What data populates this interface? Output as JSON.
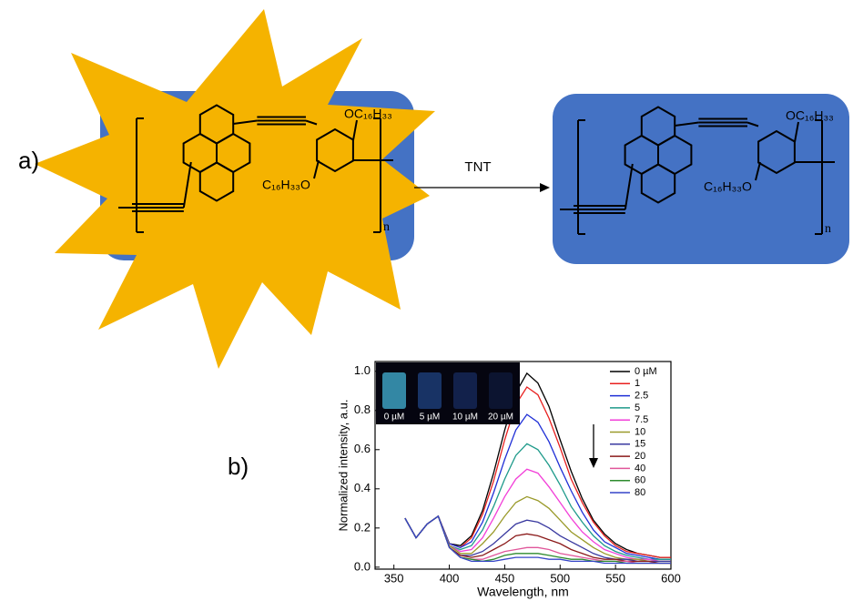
{
  "figure": {
    "panel_a_label": "a)",
    "panel_b_label": "b)",
    "arrow_label": "TNT",
    "left_molecule": {
      "substituent_top": "OC₁₆H₃₃",
      "substituent_bottom": "C₁₆H₃₃O",
      "repeat": "n"
    },
    "right_molecule": {
      "substituent_top": "OC₁₆H₃₃",
      "substituent_bottom": "C₁₆H₃₃O",
      "repeat": "n"
    }
  },
  "chart_data": {
    "type": "line",
    "x_label": "Wavelength, nm",
    "y_label": "Normalized intensity, a.u.",
    "inset_labels": [
      "0 µM",
      "5 µM",
      "10 µM",
      "20 µM"
    ],
    "x": [
      360,
      370,
      380,
      390,
      400,
      410,
      420,
      430,
      440,
      450,
      460,
      470,
      480,
      490,
      500,
      510,
      520,
      530,
      540,
      550,
      560,
      570,
      580,
      590,
      600
    ],
    "xlim": [
      333,
      600
    ],
    "xticks": [
      350,
      400,
      450,
      500,
      550,
      600
    ],
    "ylim": [
      -0.01,
      1.05
    ],
    "yticks": [
      {
        "value": 0,
        "label": "0.0"
      },
      0.2,
      0.4,
      0.6,
      0.8,
      {
        "value": 1,
        "label": "1.0"
      }
    ],
    "series": [
      {
        "name": "0 µM",
        "color": "#000000",
        "values": [
          0.25,
          0.15,
          0.22,
          0.26,
          0.12,
          0.11,
          0.16,
          0.29,
          0.48,
          0.7,
          0.89,
          0.99,
          0.94,
          0.82,
          0.65,
          0.49,
          0.35,
          0.24,
          0.17,
          0.12,
          0.09,
          0.07,
          0.06,
          0.05,
          0.05
        ]
      },
      {
        "name": "1",
        "color": "#e8201f",
        "values": [
          0.25,
          0.15,
          0.22,
          0.26,
          0.12,
          0.1,
          0.15,
          0.27,
          0.44,
          0.65,
          0.83,
          0.92,
          0.88,
          0.76,
          0.61,
          0.45,
          0.33,
          0.23,
          0.16,
          0.11,
          0.08,
          0.07,
          0.06,
          0.05,
          0.05
        ]
      },
      {
        "name": "2.5",
        "color": "#1f2fd6",
        "values": [
          0.25,
          0.15,
          0.22,
          0.26,
          0.12,
          0.1,
          0.13,
          0.23,
          0.38,
          0.55,
          0.7,
          0.78,
          0.74,
          0.64,
          0.51,
          0.39,
          0.28,
          0.19,
          0.13,
          0.1,
          0.07,
          0.06,
          0.05,
          0.04,
          0.04
        ]
      },
      {
        "name": "5",
        "color": "#1e9a8a",
        "values": [
          0.25,
          0.15,
          0.22,
          0.26,
          0.11,
          0.09,
          0.11,
          0.19,
          0.31,
          0.45,
          0.57,
          0.63,
          0.6,
          0.52,
          0.42,
          0.31,
          0.23,
          0.16,
          0.11,
          0.08,
          0.06,
          0.05,
          0.04,
          0.04,
          0.04
        ]
      },
      {
        "name": "7.5",
        "color": "#f23fd8",
        "values": [
          0.25,
          0.15,
          0.22,
          0.26,
          0.11,
          0.08,
          0.09,
          0.15,
          0.25,
          0.36,
          0.45,
          0.5,
          0.48,
          0.41,
          0.33,
          0.25,
          0.18,
          0.13,
          0.09,
          0.07,
          0.05,
          0.04,
          0.04,
          0.03,
          0.03
        ]
      },
      {
        "name": "10",
        "color": "#9a9a2a",
        "values": [
          0.25,
          0.15,
          0.22,
          0.26,
          0.11,
          0.07,
          0.07,
          0.12,
          0.18,
          0.26,
          0.33,
          0.36,
          0.34,
          0.3,
          0.24,
          0.18,
          0.14,
          0.1,
          0.07,
          0.05,
          0.04,
          0.04,
          0.03,
          0.03,
          0.03
        ]
      },
      {
        "name": "15",
        "color": "#3a3aa0",
        "values": [
          0.25,
          0.15,
          0.22,
          0.26,
          0.1,
          0.06,
          0.06,
          0.08,
          0.12,
          0.17,
          0.22,
          0.24,
          0.23,
          0.2,
          0.16,
          0.13,
          0.1,
          0.07,
          0.05,
          0.04,
          0.04,
          0.03,
          0.03,
          0.03,
          0.03
        ]
      },
      {
        "name": "20",
        "color": "#8b1a1a",
        "values": [
          0.25,
          0.15,
          0.22,
          0.26,
          0.1,
          0.06,
          0.05,
          0.06,
          0.09,
          0.12,
          0.16,
          0.17,
          0.16,
          0.14,
          0.12,
          0.09,
          0.07,
          0.05,
          0.04,
          0.04,
          0.03,
          0.03,
          0.03,
          0.02,
          0.02
        ]
      },
      {
        "name": "40",
        "color": "#e0569a",
        "values": [
          0.25,
          0.15,
          0.22,
          0.26,
          0.1,
          0.05,
          0.04,
          0.04,
          0.06,
          0.08,
          0.09,
          0.1,
          0.1,
          0.09,
          0.07,
          0.06,
          0.05,
          0.04,
          0.03,
          0.03,
          0.03,
          0.02,
          0.02,
          0.02,
          0.02
        ]
      },
      {
        "name": "60",
        "color": "#2e8b2e",
        "values": [
          0.25,
          0.15,
          0.22,
          0.26,
          0.1,
          0.05,
          0.04,
          0.03,
          0.04,
          0.06,
          0.07,
          0.07,
          0.07,
          0.06,
          0.05,
          0.04,
          0.04,
          0.03,
          0.03,
          0.03,
          0.02,
          0.02,
          0.02,
          0.02,
          0.02
        ]
      },
      {
        "name": "80",
        "color": "#3545c8",
        "values": [
          0.25,
          0.15,
          0.22,
          0.26,
          0.1,
          0.05,
          0.03,
          0.03,
          0.03,
          0.04,
          0.05,
          0.05,
          0.05,
          0.04,
          0.04,
          0.03,
          0.03,
          0.03,
          0.02,
          0.02,
          0.02,
          0.02,
          0.02,
          0.02,
          0.02
        ]
      }
    ]
  }
}
